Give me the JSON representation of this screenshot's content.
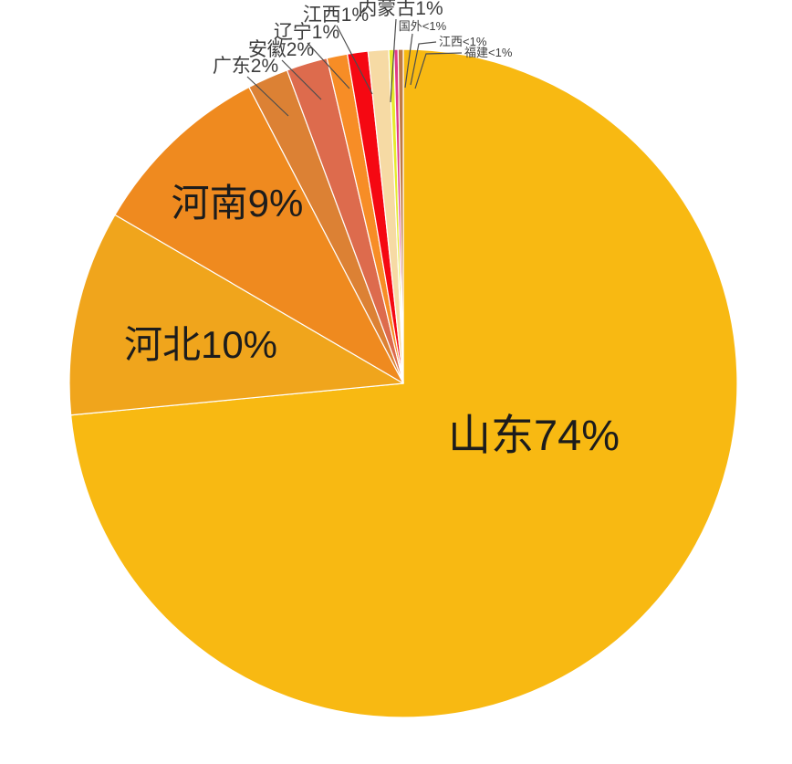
{
  "page": {
    "background": "#ffffff"
  },
  "chart_data": {
    "type": "pie",
    "title": "",
    "legend": "none",
    "start_angle_deg": 0,
    "direction": "clockwise",
    "slices": [
      {
        "label": "山东",
        "display": "山东74%",
        "value": 74,
        "color": "#F8B912",
        "label_placement": "inside"
      },
      {
        "label": "河北",
        "display": "河北10%",
        "value": 10,
        "color": "#F0A51C",
        "label_placement": "inside"
      },
      {
        "label": "河南",
        "display": "河南9%",
        "value": 9,
        "color": "#EF8A1F",
        "label_placement": "inside"
      },
      {
        "label": "广东",
        "display": "广东2%",
        "value": 2,
        "color": "#DC8134",
        "label_placement": "outside"
      },
      {
        "label": "安徽",
        "display": "安徽2%",
        "value": 2,
        "color": "#DD6B4D",
        "label_placement": "outside"
      },
      {
        "label": "辽宁",
        "display": "辽宁1%",
        "value": 1,
        "color": "#F78D26",
        "label_placement": "outside"
      },
      {
        "label": "江西",
        "display": "江西1%",
        "value": 1,
        "color": "#F50812",
        "label_placement": "outside"
      },
      {
        "label": "内蒙古",
        "display": "内蒙古1%",
        "value": 1,
        "color": "#F6DAA4",
        "label_placement": "outside"
      },
      {
        "label": "国外",
        "display": "国外<1%",
        "value": 0.25,
        "color": "#E6EB2D",
        "label_placement": "outside-small"
      },
      {
        "label": "江西",
        "display": "江西<1%",
        "value": 0.2,
        "color": "#E03C86",
        "label_placement": "outside-small"
      },
      {
        "label": "福建",
        "display": "福建<1%",
        "value": 0.25,
        "color": "#C07B43",
        "label_placement": "outside-small"
      }
    ]
  }
}
